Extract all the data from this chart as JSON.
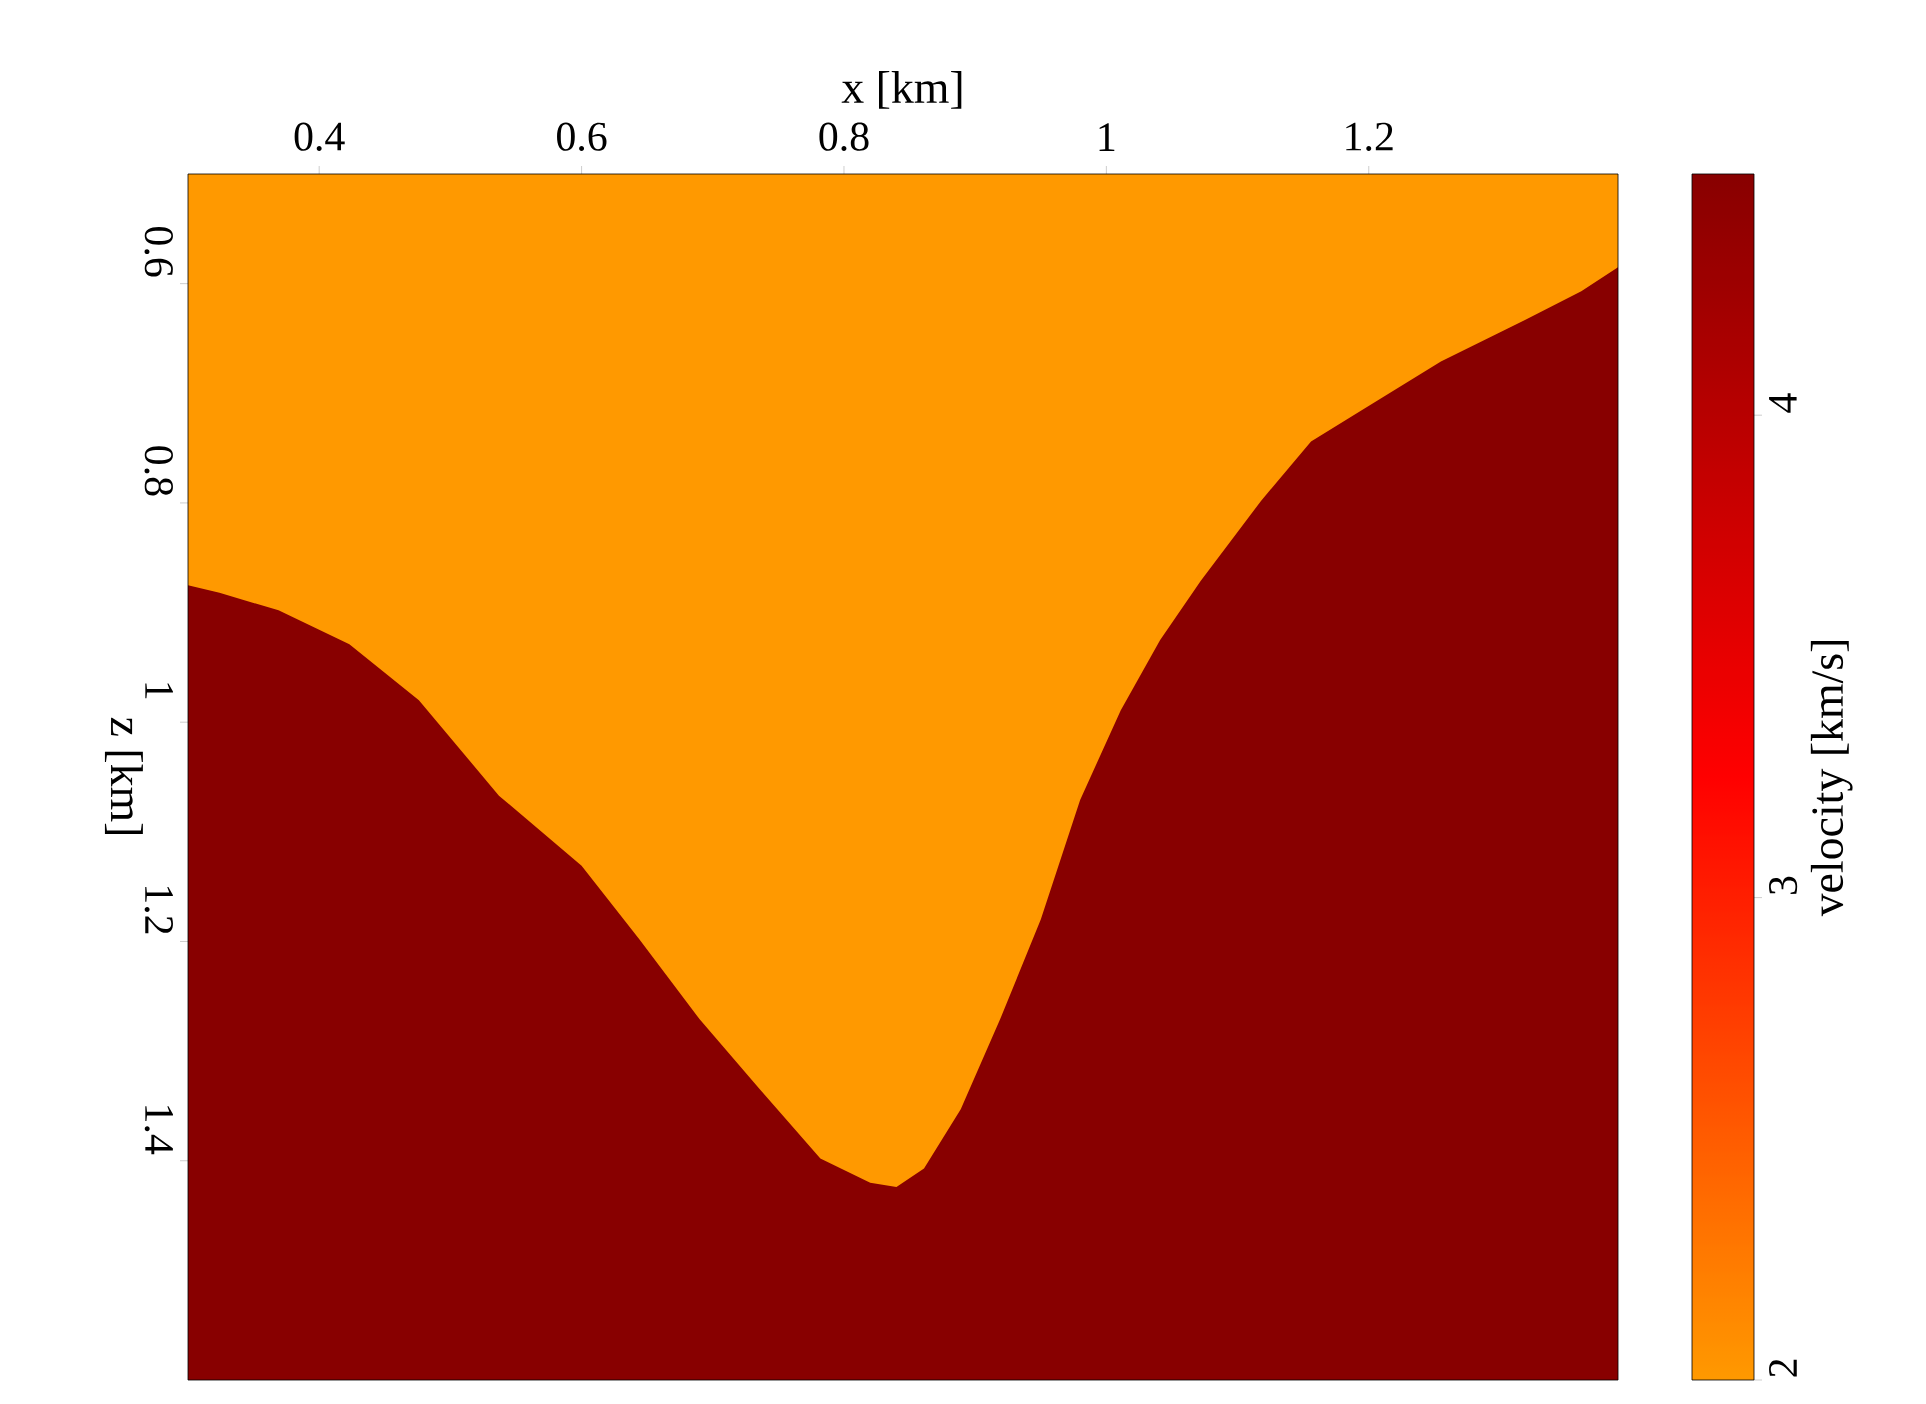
{
  "chart_data": {
    "type": "area",
    "xlabel": "x [km]",
    "ylabel": "z [km]",
    "clabel": "velocity [km/s]",
    "x": [
      0.3,
      0.324,
      0.369,
      0.423,
      0.476,
      0.537,
      0.6,
      0.644,
      0.69,
      0.736,
      0.782,
      0.82,
      0.84,
      0.861,
      0.889,
      0.919,
      0.95,
      0.98,
      1.011,
      1.041,
      1.072,
      1.118,
      1.156,
      1.194,
      1.255,
      1.316,
      1.362,
      1.39
    ],
    "series": [
      {
        "color": "#ff9900",
        "values": [
          0.875,
          0.882,
          0.898,
          0.929,
          0.98,
          1.067,
          1.131,
          1.198,
          1.271,
          1.335,
          1.398,
          1.42,
          1.424,
          1.407,
          1.353,
          1.271,
          1.18,
          1.071,
          0.989,
          0.925,
          0.871,
          0.798,
          0.744,
          0.716,
          0.671,
          0.635,
          0.607,
          0.585
        ]
      }
    ],
    "bands": [
      {
        "axis": "y",
        "from": 0.5,
        "to": 1.6,
        "color": "#880000"
      }
    ],
    "xlim": [
      0.3,
      1.39
    ],
    "ylim": [
      1.6,
      0.5
    ],
    "xticks": [
      0.4,
      0.6,
      0.8,
      1,
      1.2
    ],
    "yticks": [
      0.6,
      0.8,
      1,
      1.2,
      1.4
    ],
    "clim": [
      2,
      4.5
    ],
    "cticks": [
      2,
      3,
      4
    ]
  }
}
